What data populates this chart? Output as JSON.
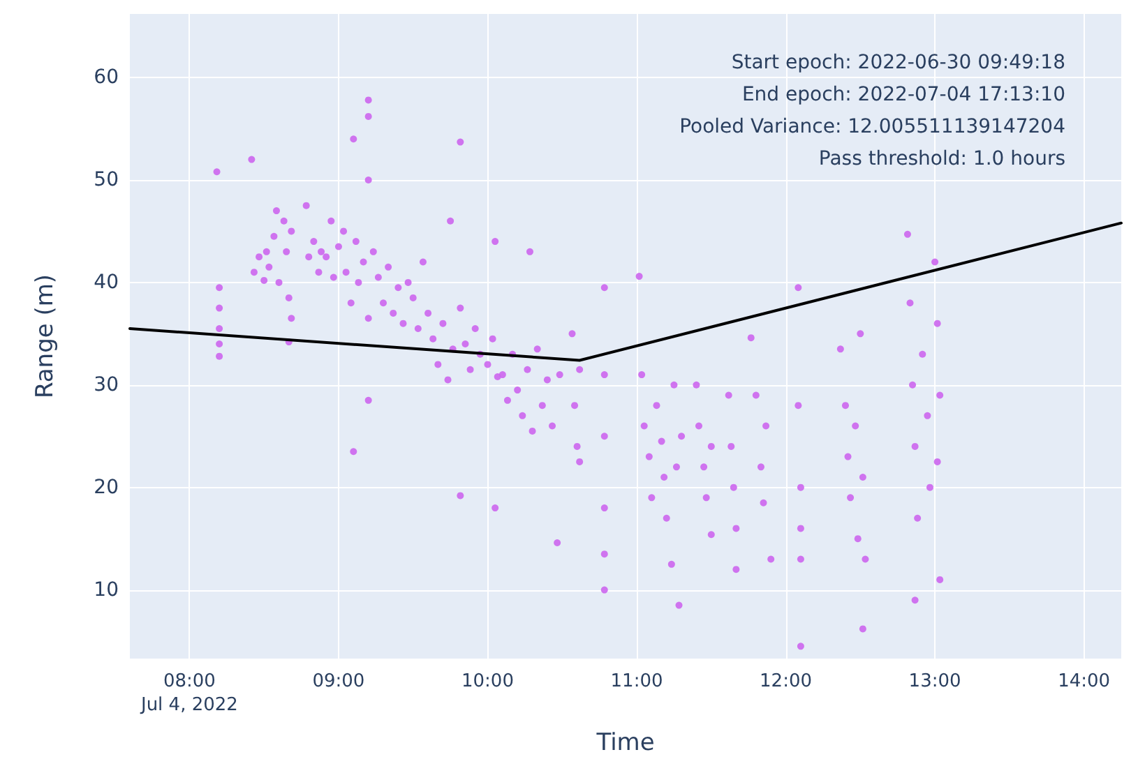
{
  "chart_data": {
    "type": "scatter",
    "xlabel": "Time",
    "ylabel": "Range (m)",
    "annotations": [
      "Start epoch: 2022-06-30 09:49:18",
      "End epoch: 2022-07-04 17:13:10",
      "Pooled Variance: 12.005511139147204",
      "Pass threshold: 1.0 hours"
    ],
    "xlim": [
      "2022-07-04T07:36",
      "2022-07-04T14:15"
    ],
    "xticks": [
      {
        "value": "2022-07-04T08:00",
        "label": "08:00\nJul 4, 2022"
      },
      {
        "value": "2022-07-04T09:00",
        "label": "09:00"
      },
      {
        "value": "2022-07-04T10:00",
        "label": "10:00"
      },
      {
        "value": "2022-07-04T11:00",
        "label": "11:00"
      },
      {
        "value": "2022-07-04T12:00",
        "label": "12:00"
      },
      {
        "value": "2022-07-04T13:00",
        "label": "13:00"
      },
      {
        "value": "2022-07-04T14:00",
        "label": "14:00"
      }
    ],
    "ylim": [
      3.3,
      66.2
    ],
    "yticks": [
      10,
      20,
      30,
      40,
      50,
      60
    ],
    "grid": true,
    "series": [
      {
        "marker": "circle",
        "color": "#cc66ee",
        "x": [
          "2022-07-04T08:11",
          "2022-07-04T08:12",
          "2022-07-04T08:12",
          "2022-07-04T08:12",
          "2022-07-04T08:12",
          "2022-07-04T08:12",
          "2022-07-04T08:25",
          "2022-07-04T08:26",
          "2022-07-04T08:28",
          "2022-07-04T08:30",
          "2022-07-04T08:31",
          "2022-07-04T08:32",
          "2022-07-04T08:34",
          "2022-07-04T08:35",
          "2022-07-04T08:36",
          "2022-07-04T08:38",
          "2022-07-04T08:39",
          "2022-07-04T08:40",
          "2022-07-04T08:40",
          "2022-07-04T08:41",
          "2022-07-04T08:41",
          "2022-07-04T08:47",
          "2022-07-04T08:48",
          "2022-07-04T08:50",
          "2022-07-04T08:52",
          "2022-07-04T08:53",
          "2022-07-04T08:55",
          "2022-07-04T08:57",
          "2022-07-04T08:58",
          "2022-07-04T09:00",
          "2022-07-04T09:02",
          "2022-07-04T09:03",
          "2022-07-04T09:05",
          "2022-07-04T09:06",
          "2022-07-04T09:06",
          "2022-07-04T09:07",
          "2022-07-04T09:08",
          "2022-07-04T09:10",
          "2022-07-04T09:12",
          "2022-07-04T09:12",
          "2022-07-04T09:12",
          "2022-07-04T09:12",
          "2022-07-04T09:12",
          "2022-07-04T09:14",
          "2022-07-04T09:16",
          "2022-07-04T09:18",
          "2022-07-04T09:20",
          "2022-07-04T09:22",
          "2022-07-04T09:24",
          "2022-07-04T09:26",
          "2022-07-04T09:28",
          "2022-07-04T09:30",
          "2022-07-04T09:32",
          "2022-07-04T09:34",
          "2022-07-04T09:36",
          "2022-07-04T09:38",
          "2022-07-04T09:40",
          "2022-07-04T09:42",
          "2022-07-04T09:44",
          "2022-07-04T09:45",
          "2022-07-04T09:46",
          "2022-07-04T09:49",
          "2022-07-04T09:49",
          "2022-07-04T09:49",
          "2022-07-04T09:51",
          "2022-07-04T09:53",
          "2022-07-04T09:55",
          "2022-07-04T09:57",
          "2022-07-04T10:00",
          "2022-07-04T10:02",
          "2022-07-04T10:03",
          "2022-07-04T10:03",
          "2022-07-04T10:04",
          "2022-07-04T10:06",
          "2022-07-04T10:08",
          "2022-07-04T10:10",
          "2022-07-04T10:12",
          "2022-07-04T10:14",
          "2022-07-04T10:16",
          "2022-07-04T10:17",
          "2022-07-04T10:18",
          "2022-07-04T10:20",
          "2022-07-04T10:22",
          "2022-07-04T10:24",
          "2022-07-04T10:26",
          "2022-07-04T10:28",
          "2022-07-04T10:29",
          "2022-07-04T10:34",
          "2022-07-04T10:35",
          "2022-07-04T10:36",
          "2022-07-04T10:37",
          "2022-07-04T10:37",
          "2022-07-04T10:47",
          "2022-07-04T10:47",
          "2022-07-04T10:47",
          "2022-07-04T10:47",
          "2022-07-04T10:47",
          "2022-07-04T10:47",
          "2022-07-04T11:01",
          "2022-07-04T11:02",
          "2022-07-04T11:03",
          "2022-07-04T11:05",
          "2022-07-04T11:06",
          "2022-07-04T11:08",
          "2022-07-04T11:10",
          "2022-07-04T11:11",
          "2022-07-04T11:12",
          "2022-07-04T11:14",
          "2022-07-04T11:15",
          "2022-07-04T11:16",
          "2022-07-04T11:17",
          "2022-07-04T11:18",
          "2022-07-04T11:24",
          "2022-07-04T11:25",
          "2022-07-04T11:27",
          "2022-07-04T11:28",
          "2022-07-04T11:30",
          "2022-07-04T11:30",
          "2022-07-04T11:37",
          "2022-07-04T11:38",
          "2022-07-04T11:39",
          "2022-07-04T11:40",
          "2022-07-04T11:40",
          "2022-07-04T11:46",
          "2022-07-04T11:48",
          "2022-07-04T11:50",
          "2022-07-04T11:51",
          "2022-07-04T11:52",
          "2022-07-04T11:54",
          "2022-07-04T12:05",
          "2022-07-04T12:05",
          "2022-07-04T12:06",
          "2022-07-04T12:06",
          "2022-07-04T12:06",
          "2022-07-04T12:06",
          "2022-07-04T12:22",
          "2022-07-04T12:24",
          "2022-07-04T12:25",
          "2022-07-04T12:26",
          "2022-07-04T12:28",
          "2022-07-04T12:29",
          "2022-07-04T12:30",
          "2022-07-04T12:31",
          "2022-07-04T12:32",
          "2022-07-04T12:31",
          "2022-07-04T12:49",
          "2022-07-04T12:50",
          "2022-07-04T12:51",
          "2022-07-04T12:52",
          "2022-07-04T12:53",
          "2022-07-04T12:52",
          "2022-07-04T12:55",
          "2022-07-04T12:57",
          "2022-07-04T12:58",
          "2022-07-04T13:00",
          "2022-07-04T13:01",
          "2022-07-04T13:01",
          "2022-07-04T13:02",
          "2022-07-04T13:02"
        ],
        "values": [
          50.8,
          39.5,
          37.5,
          35.5,
          34,
          32.8,
          52,
          41,
          42.5,
          40.2,
          43,
          41.5,
          44.5,
          47,
          40,
          46,
          43,
          38.5,
          34.2,
          36.5,
          45,
          47.5,
          42.5,
          44,
          41,
          43,
          42.5,
          46,
          40.5,
          43.5,
          45,
          41,
          38,
          54,
          23.5,
          44,
          40,
          42,
          57.8,
          56.2,
          50,
          28.5,
          36.5,
          43,
          40.5,
          38,
          41.5,
          37,
          39.5,
          36,
          40,
          38.5,
          35.5,
          42,
          37,
          34.5,
          32,
          36,
          30.5,
          46,
          33.5,
          53.7,
          19.2,
          37.5,
          34,
          31.5,
          35.5,
          33,
          32,
          34.5,
          44,
          18,
          30.8,
          31,
          28.5,
          33,
          29.5,
          27,
          31.5,
          43,
          25.5,
          33.5,
          28,
          30.5,
          26,
          14.6,
          31,
          35,
          28,
          24,
          31.5,
          22.5,
          39.5,
          31,
          25,
          18,
          13.5,
          10,
          40.6,
          31,
          26,
          23,
          19,
          28,
          24.5,
          21,
          17,
          12.5,
          30,
          22,
          8.5,
          25,
          30,
          26,
          22,
          19,
          15.4,
          24,
          29,
          24,
          20,
          16,
          12,
          34.6,
          29,
          22,
          18.5,
          26,
          13,
          39.5,
          28,
          20,
          16,
          13,
          4.5,
          33.5,
          28,
          23,
          19,
          26,
          15,
          35,
          21,
          13,
          6.2,
          44.7,
          38,
          30,
          24,
          17,
          9,
          33,
          27,
          20,
          42,
          36,
          22.5,
          29,
          11
        ]
      },
      {
        "type": "line",
        "marker": "none",
        "line_style": "solid",
        "color": "#000000",
        "x": [
          "2022-07-04T07:36",
          "2022-07-04T10:37",
          "2022-07-04T14:15"
        ],
        "values": [
          35.5,
          32.4,
          45.8
        ]
      }
    ]
  }
}
